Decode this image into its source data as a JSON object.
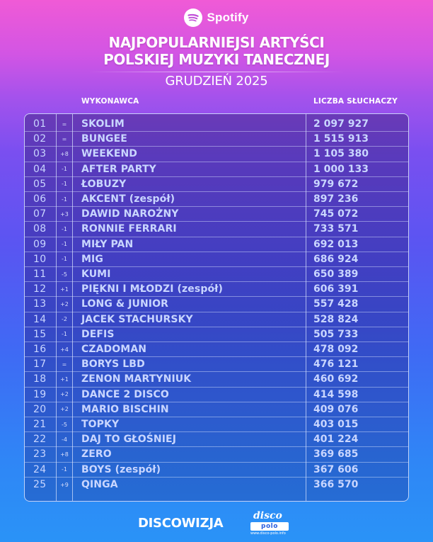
{
  "brand": {
    "name": "Spotify",
    "icon": "spotify-icon"
  },
  "title_lines": [
    "NAJPOPULARNIEJSI ARTYŚCI",
    "POLSKIEJ MUZYKI TANECZNEJ"
  ],
  "subtitle": "GRUDZIEŃ 2025",
  "columns": {
    "artist": "WYKONAWCA",
    "listeners": "LICZBA SŁUCHACZY"
  },
  "rows": [
    {
      "rank": "01",
      "change": "=",
      "artist": "SKOLIM",
      "listeners": "2 097 927"
    },
    {
      "rank": "02",
      "change": "=",
      "artist": "BUNGEE",
      "listeners": "1 515 913"
    },
    {
      "rank": "03",
      "change": "+8",
      "artist": "WEEKEND",
      "listeners": "1 105 380"
    },
    {
      "rank": "04",
      "change": "-1",
      "artist": "AFTER PARTY",
      "listeners": "1 000 133"
    },
    {
      "rank": "05",
      "change": "-1",
      "artist": "ŁOBUZY",
      "listeners": "979 672"
    },
    {
      "rank": "06",
      "change": "-1",
      "artist": "AKCENT (zespół)",
      "listeners": "897 236"
    },
    {
      "rank": "07",
      "change": "+3",
      "artist": "DAWID NAROŻNY",
      "listeners": "745 072"
    },
    {
      "rank": "08",
      "change": "-1",
      "artist": "RONNIE FERRARI",
      "listeners": "733 571"
    },
    {
      "rank": "09",
      "change": "-1",
      "artist": "MIŁY PAN",
      "listeners": "692 013"
    },
    {
      "rank": "10",
      "change": "-1",
      "artist": "MIG",
      "listeners": "686 924"
    },
    {
      "rank": "11",
      "change": "-5",
      "artist": "KUMI",
      "listeners": "650 389"
    },
    {
      "rank": "12",
      "change": "+1",
      "artist": "PIĘKNI I MŁODZI (zespół)",
      "listeners": "606 391"
    },
    {
      "rank": "13",
      "change": "+2",
      "artist": "LONG & JUNIOR",
      "listeners": "557 428"
    },
    {
      "rank": "14",
      "change": "-2",
      "artist": "JACEK STACHURSKY",
      "listeners": "528 824"
    },
    {
      "rank": "15",
      "change": "-1",
      "artist": "DEFIS",
      "listeners": "505 733"
    },
    {
      "rank": "16",
      "change": "+4",
      "artist": "CZADOMAN",
      "listeners": "478 092"
    },
    {
      "rank": "17",
      "change": "=",
      "artist": "BORYS LBD",
      "listeners": "476 121"
    },
    {
      "rank": "18",
      "change": "+1",
      "artist": "ZENON MARTYNIUK",
      "listeners": "460 692"
    },
    {
      "rank": "19",
      "change": "+2",
      "artist": "DANCE 2 DISCO",
      "listeners": "414 598"
    },
    {
      "rank": "20",
      "change": "+2",
      "artist": "MARIO BISCHIN",
      "listeners": "409 076"
    },
    {
      "rank": "21",
      "change": "-5",
      "artist": "TOPKY",
      "listeners": "403 015"
    },
    {
      "rank": "22",
      "change": "-4",
      "artist": "DAJ TO GŁOŚNIEJ",
      "listeners": "401 224"
    },
    {
      "rank": "23",
      "change": "+8",
      "artist": "ZERO",
      "listeners": "369 685"
    },
    {
      "rank": "24",
      "change": "-1",
      "artist": "BOYS (zespół)",
      "listeners": "367 606"
    },
    {
      "rank": "25",
      "change": "+9",
      "artist": "QINGA",
      "listeners": "366 570"
    }
  ],
  "footer": {
    "discowizja": "DISCOWIZJA",
    "logo_top": "disco",
    "logo_bar": "polo",
    "logo_url": "www.disco-polo.info"
  }
}
